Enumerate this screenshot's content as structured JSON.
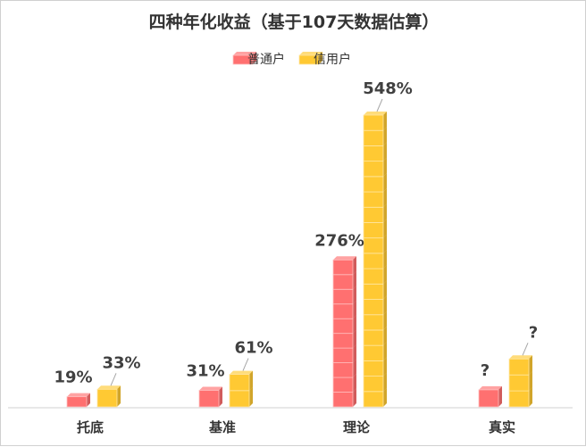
{
  "chart_data": {
    "type": "bar",
    "title": "四种年化收益（基于107天数据估算）",
    "categories": [
      "托底",
      "基准",
      "理论",
      "真实"
    ],
    "series": [
      {
        "name": "普通户",
        "color": "#FF7070",
        "values": [
          19,
          31,
          276,
          null
        ],
        "labels": [
          "19%",
          "31%",
          "276%",
          "?"
        ],
        "visual_level": [
          19,
          31,
          276,
          32
        ]
      },
      {
        "name": "信用户",
        "color": "#FFC933",
        "values": [
          33,
          61,
          548,
          null
        ],
        "labels": [
          "33%",
          "61%",
          "548%",
          "?"
        ],
        "visual_level": [
          33,
          61,
          548,
          90
        ]
      }
    ],
    "ylim": [
      0,
      600
    ],
    "grid": false,
    "legend_position": "top-center",
    "bar_style": "stacked-cubes",
    "unit": "%"
  }
}
